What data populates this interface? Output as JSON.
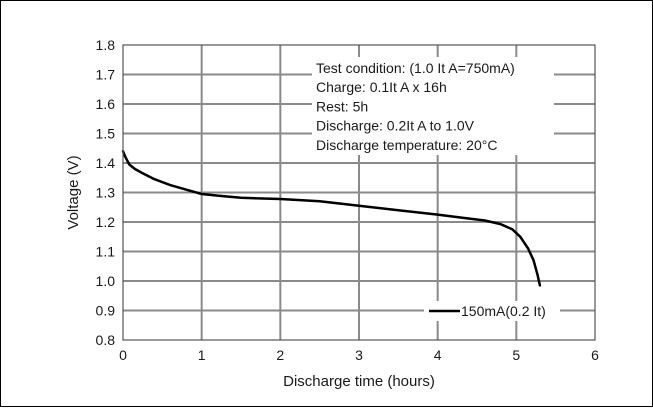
{
  "chart_data": {
    "type": "line",
    "title": "",
    "xlabel": "Discharge time (hours)",
    "ylabel": "Voltage (V)",
    "xlim": [
      0,
      6
    ],
    "ylim": [
      0.8,
      1.8
    ],
    "x_ticks": [
      "0",
      "1",
      "2",
      "3",
      "4",
      "5",
      "6"
    ],
    "y_ticks": [
      "0.8",
      "0.9",
      "1.0",
      "1.1",
      "1.2",
      "1.3",
      "1.4",
      "1.5",
      "1.6",
      "1.7",
      "1.8"
    ],
    "grid": true,
    "legend_position": "bottom-right",
    "annotations": [
      "Test condition: (1.0 It A=750mA)",
      "Charge: 0.1It A x 16h",
      "Rest: 5h",
      "Discharge: 0.2It A to 1.0V",
      "Discharge temperature: 20°C"
    ],
    "series": [
      {
        "name": "150mA(0.2 It)",
        "color": "#000000",
        "x": [
          0.0,
          0.03,
          0.08,
          0.15,
          0.25,
          0.4,
          0.6,
          0.8,
          1.0,
          1.25,
          1.5,
          2.0,
          2.5,
          3.0,
          3.5,
          4.0,
          4.3,
          4.6,
          4.8,
          4.95,
          5.05,
          5.15,
          5.22,
          5.27,
          5.3
        ],
        "y": [
          1.44,
          1.42,
          1.395,
          1.38,
          1.365,
          1.345,
          1.325,
          1.31,
          1.295,
          1.288,
          1.282,
          1.278,
          1.27,
          1.255,
          1.24,
          1.225,
          1.215,
          1.205,
          1.193,
          1.175,
          1.15,
          1.11,
          1.07,
          1.02,
          0.985
        ]
      }
    ]
  }
}
